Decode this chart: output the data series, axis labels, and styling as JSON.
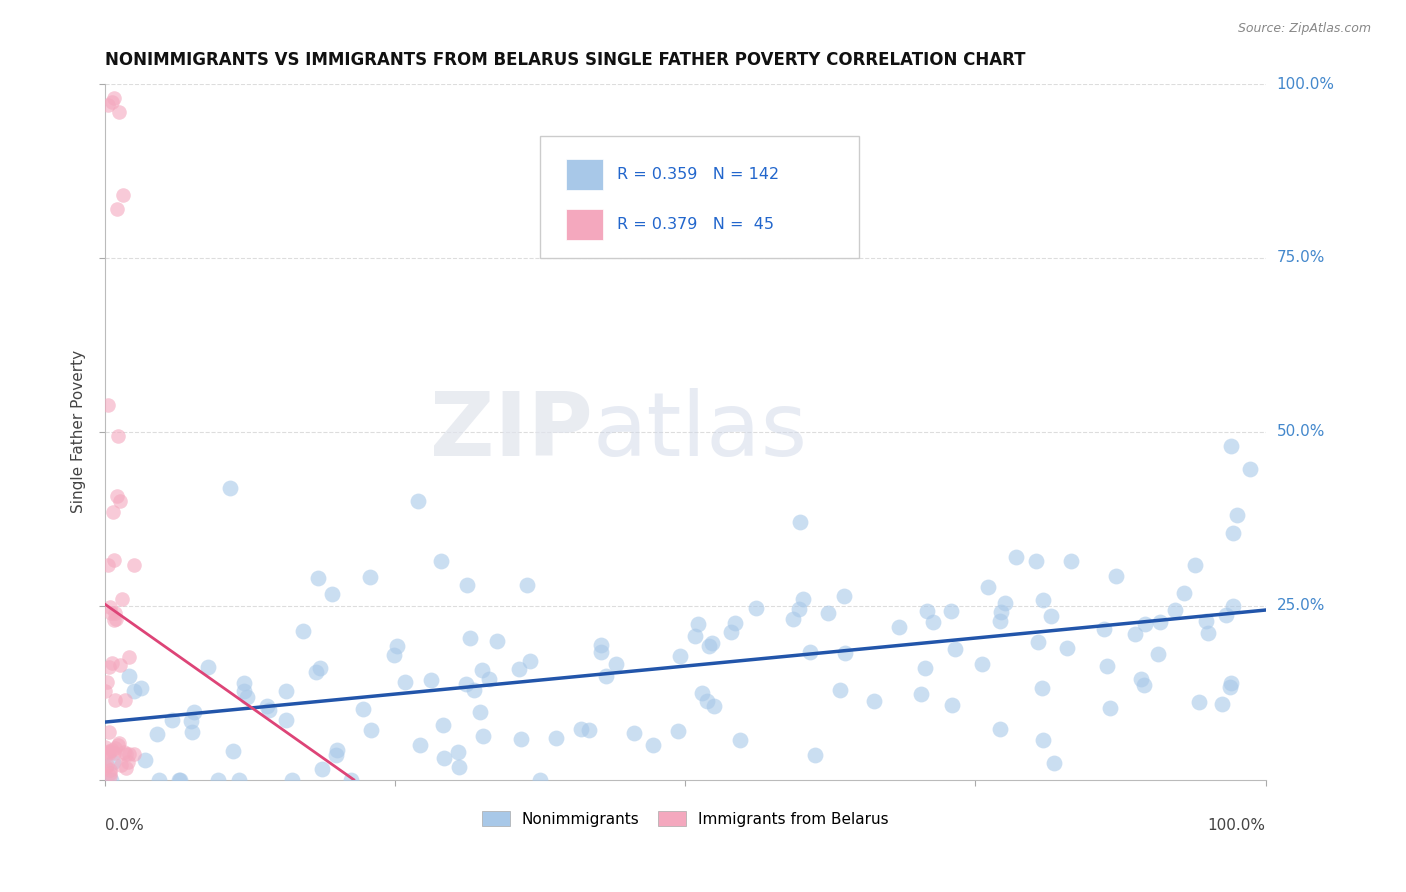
{
  "title": "NONIMMIGRANTS VS IMMIGRANTS FROM BELARUS SINGLE FATHER POVERTY CORRELATION CHART",
  "source": "Source: ZipAtlas.com",
  "ylabel": "Single Father Poverty",
  "ylabel_ticks_right": [
    "100.0%",
    "75.0%",
    "50.0%",
    "25.0%"
  ],
  "ylabel_tick_vals_right": [
    1.0,
    0.75,
    0.5,
    0.25
  ],
  "blue_color": "#a8c8e8",
  "pink_color": "#f4a8be",
  "trendline_blue": "#2255aa",
  "trendline_pink": "#dd4477",
  "watermark_zip": "ZIP",
  "watermark_atlas": "atlas",
  "background_color": "#ffffff",
  "grid_color": "#dddddd",
  "R_blue": 0.359,
  "N_blue": 142,
  "R_pink": 0.379,
  "N_pink": 45,
  "legend_text_color": "#2255aa",
  "legend_R_color": "#2266cc",
  "seed": 42
}
